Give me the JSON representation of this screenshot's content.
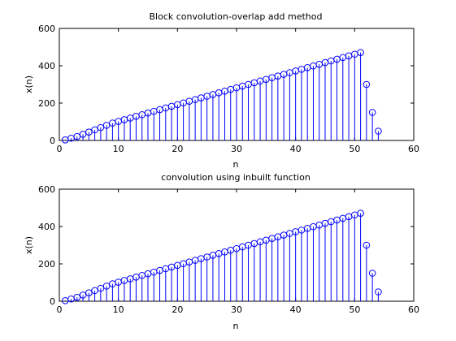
{
  "chart_data": [
    {
      "type": "stem",
      "title": "Block convolution-overlap add method",
      "xlabel": "n",
      "ylabel": "x(n)",
      "xlim": [
        0,
        60
      ],
      "ylim": [
        0,
        600
      ],
      "xticks": [
        0,
        10,
        20,
        30,
        40,
        50,
        60
      ],
      "yticks": [
        0,
        200,
        400,
        600
      ],
      "grid": false,
      "series_color": "#0000ff",
      "x": [
        1,
        2,
        3,
        4,
        5,
        6,
        7,
        8,
        9,
        10,
        11,
        12,
        13,
        14,
        15,
        16,
        17,
        18,
        19,
        20,
        21,
        22,
        23,
        24,
        25,
        26,
        27,
        28,
        29,
        30,
        31,
        32,
        33,
        34,
        35,
        36,
        37,
        38,
        39,
        40,
        41,
        42,
        43,
        44,
        45,
        46,
        47,
        48,
        49,
        50,
        51,
        52,
        53,
        54
      ],
      "y": [
        3,
        12,
        21,
        33,
        45,
        57,
        69,
        81,
        93,
        102,
        111,
        120,
        129,
        138,
        147,
        156,
        165,
        174,
        183,
        192,
        201,
        210,
        219,
        228,
        237,
        246,
        255,
        264,
        273,
        282,
        291,
        300,
        309,
        318,
        327,
        336,
        345,
        354,
        363,
        372,
        381,
        390,
        399,
        408,
        417,
        426,
        435,
        444,
        453,
        462,
        471,
        300,
        150,
        50
      ]
    },
    {
      "type": "stem",
      "title": "convolution using inbuilt function",
      "xlabel": "n",
      "ylabel": "x(n)",
      "xlim": [
        0,
        60
      ],
      "ylim": [
        0,
        600
      ],
      "xticks": [
        0,
        10,
        20,
        30,
        40,
        50,
        60
      ],
      "yticks": [
        0,
        200,
        400,
        600
      ],
      "grid": false,
      "series_color": "#0000ff",
      "x": [
        1,
        2,
        3,
        4,
        5,
        6,
        7,
        8,
        9,
        10,
        11,
        12,
        13,
        14,
        15,
        16,
        17,
        18,
        19,
        20,
        21,
        22,
        23,
        24,
        25,
        26,
        27,
        28,
        29,
        30,
        31,
        32,
        33,
        34,
        35,
        36,
        37,
        38,
        39,
        40,
        41,
        42,
        43,
        44,
        45,
        46,
        47,
        48,
        49,
        50,
        51,
        52,
        53,
        54
      ],
      "y": [
        3,
        12,
        21,
        33,
        45,
        57,
        69,
        81,
        93,
        102,
        111,
        120,
        129,
        138,
        147,
        156,
        165,
        174,
        183,
        192,
        201,
        210,
        219,
        228,
        237,
        246,
        255,
        264,
        273,
        282,
        291,
        300,
        309,
        318,
        327,
        336,
        345,
        354,
        363,
        372,
        381,
        390,
        399,
        408,
        417,
        426,
        435,
        444,
        453,
        462,
        471,
        300,
        150,
        50
      ]
    }
  ]
}
